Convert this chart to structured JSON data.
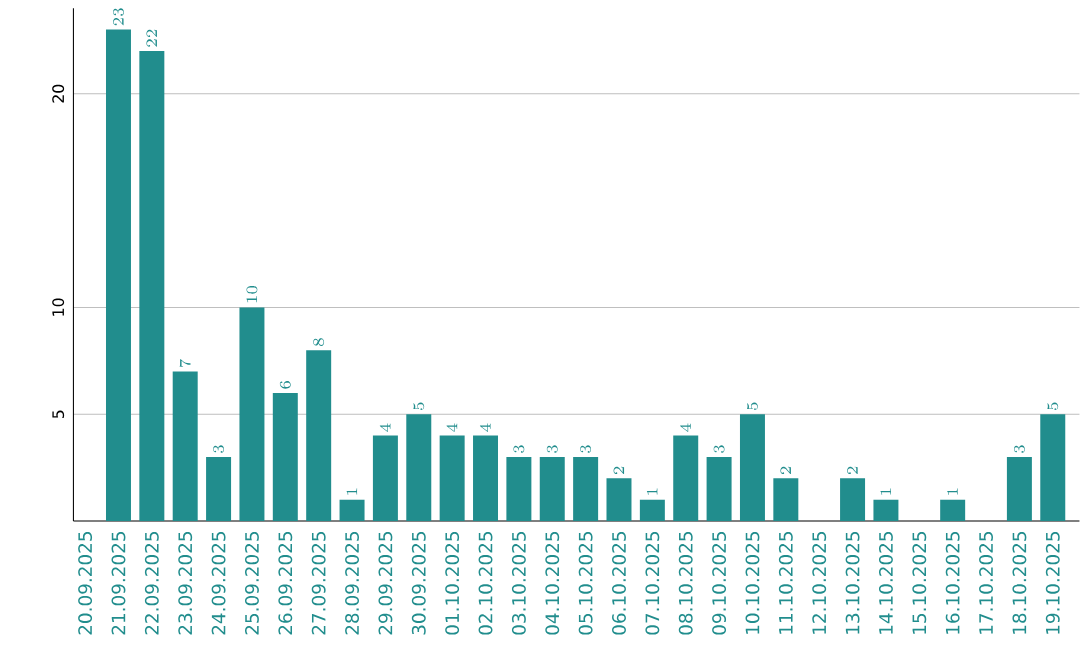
{
  "chart_data": {
    "type": "bar",
    "categories": [
      "20.09.2025",
      "21.09.2025",
      "22.09.2025",
      "23.09.2025",
      "24.09.2025",
      "25.09.2025",
      "26.09.2025",
      "27.09.2025",
      "28.09.2025",
      "29.09.2025",
      "30.09.2025",
      "01.10.2025",
      "02.10.2025",
      "03.10.2025",
      "04.10.2025",
      "05.10.2025",
      "06.10.2025",
      "07.10.2025",
      "08.10.2025",
      "09.10.2025",
      "10.10.2025",
      "11.10.2025",
      "12.10.2025",
      "13.10.2025",
      "14.10.2025",
      "15.10.2025",
      "16.10.2025",
      "17.10.2025",
      "18.10.2025",
      "19.10.2025"
    ],
    "values": [
      null,
      23,
      22,
      7,
      3,
      10,
      6,
      8,
      1,
      4,
      5,
      4,
      4,
      3,
      3,
      3,
      2,
      1,
      4,
      3,
      5,
      2,
      null,
      2,
      1,
      null,
      1,
      null,
      3,
      5
    ],
    "color": "#218d8d",
    "ylim": [
      0,
      24
    ],
    "yticks": [
      5,
      10,
      20
    ],
    "grid": "y",
    "data_labels": true
  }
}
